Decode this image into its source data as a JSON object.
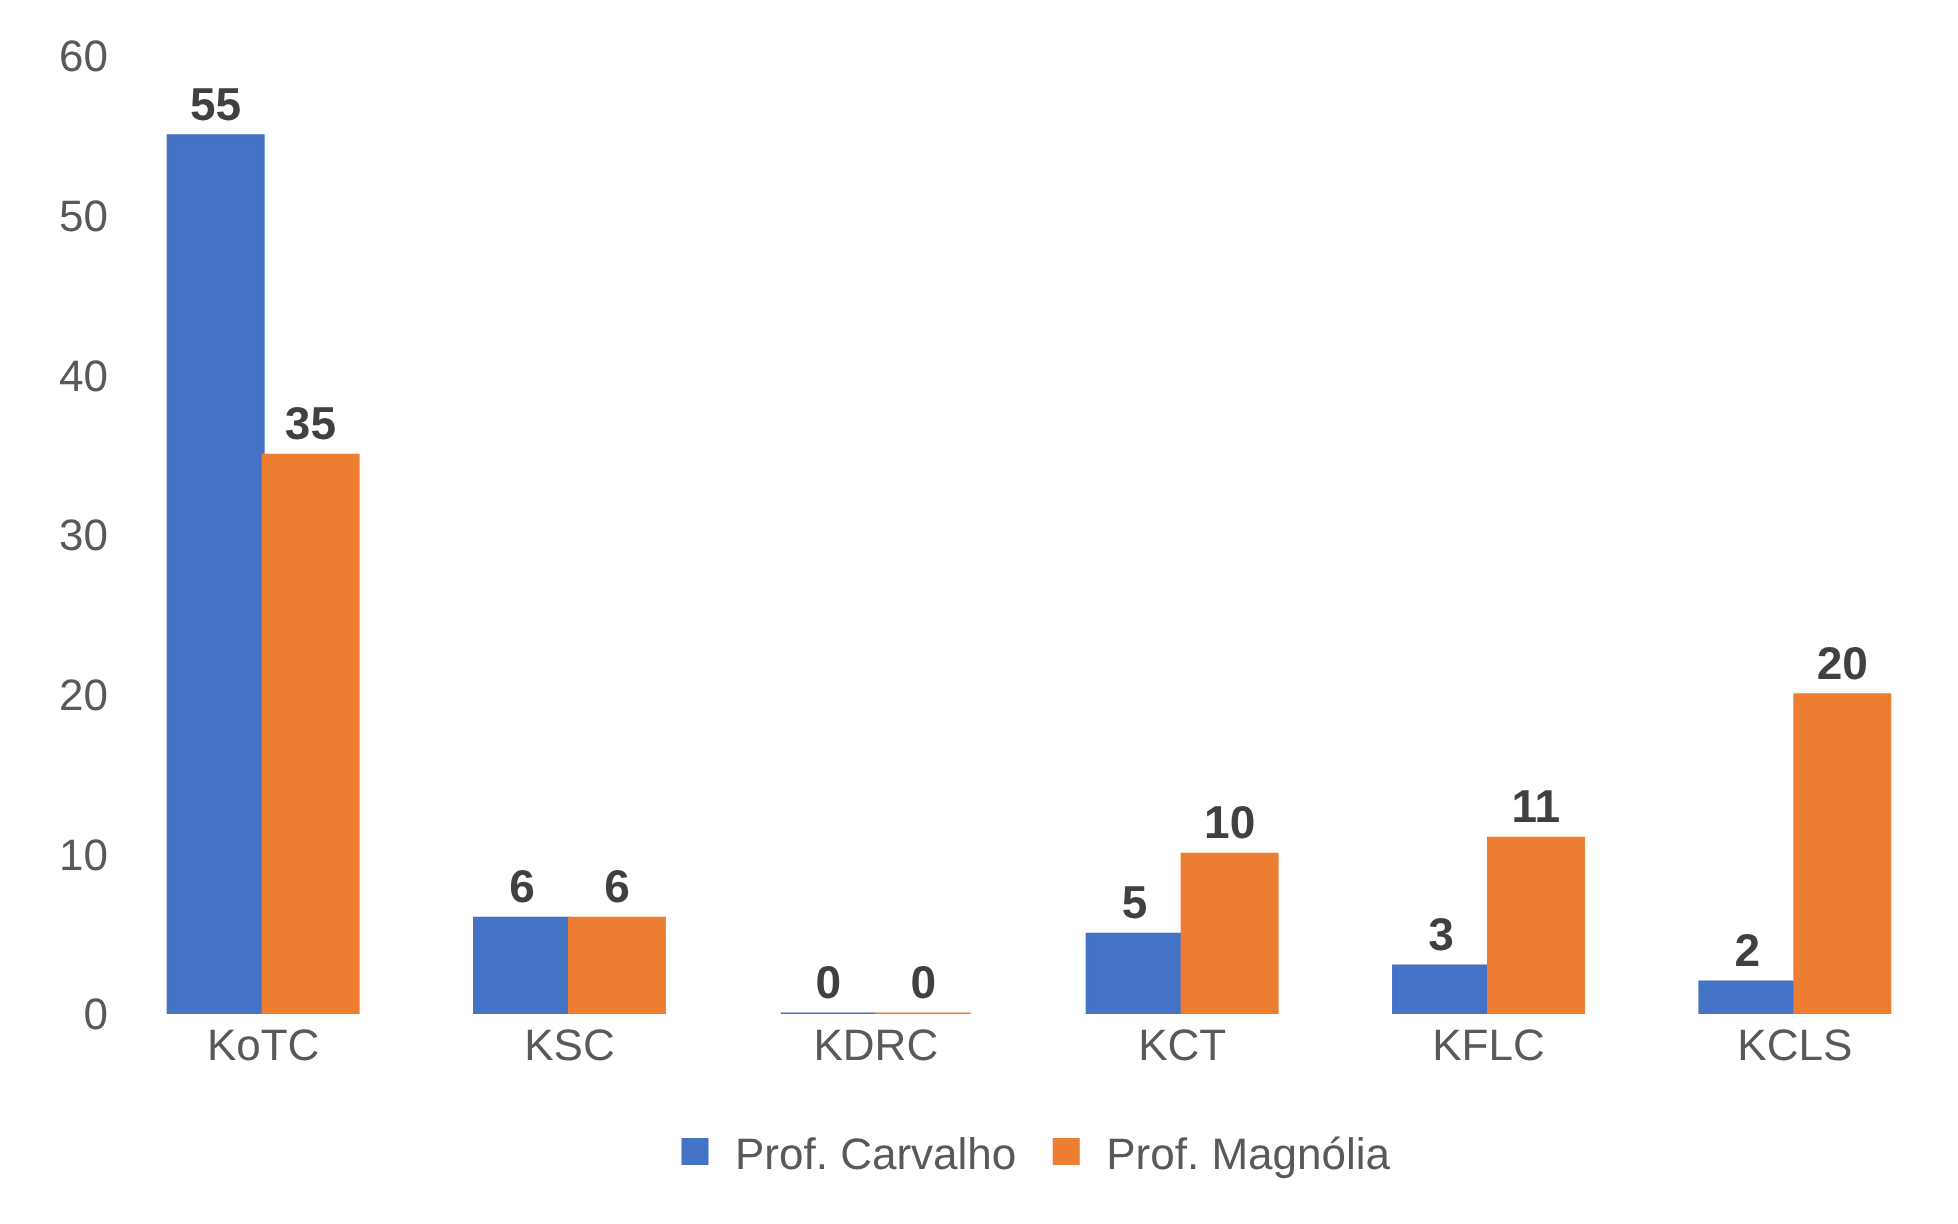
{
  "chart_data": {
    "type": "bar",
    "categories": [
      "KoTC",
      "KSC",
      "KDRC",
      "KCT",
      "KFLC",
      "KCLS"
    ],
    "series": [
      {
        "name": "Prof. Carvalho",
        "color": "#4472c4",
        "values": [
          55,
          6,
          0,
          5,
          3,
          2
        ]
      },
      {
        "name": "Prof. Magnólia",
        "color": "#ed7d31",
        "values": [
          35,
          6,
          0,
          10,
          11,
          20
        ]
      }
    ],
    "ylim": [
      0,
      60
    ],
    "yticks": [
      0,
      10,
      20,
      30,
      40,
      50,
      60
    ],
    "grid": false,
    "legend": "bottom",
    "data_labels": true
  }
}
